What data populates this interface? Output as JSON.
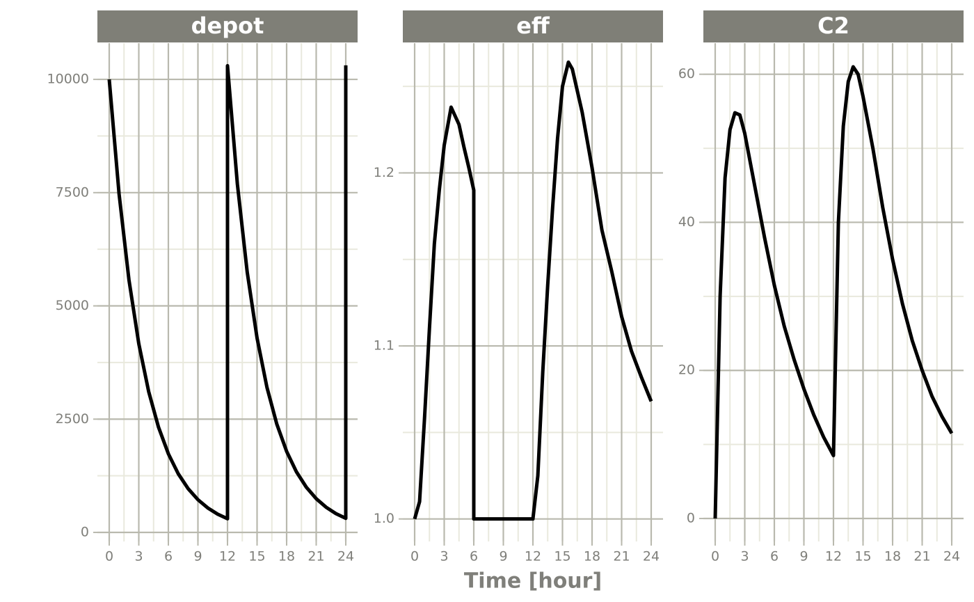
{
  "chart_data": [
    {
      "type": "line",
      "title": "depot",
      "color": "#000000",
      "x": [
        0,
        1,
        2,
        3,
        4,
        5,
        6,
        7,
        8,
        9,
        10,
        11,
        12,
        12,
        13,
        14,
        15,
        16,
        17,
        18,
        19,
        20,
        21,
        22,
        23,
        24,
        24
      ],
      "values": [
        10000,
        7468,
        5577,
        4165,
        3110,
        2323,
        1735,
        1295,
        967,
        722,
        540,
        403,
        301,
        10301,
        7693,
        5745,
        4290,
        3204,
        2393,
        1787,
        1334,
        996,
        744,
        556,
        415,
        310,
        10310
      ],
      "xlim": [
        -1.2,
        25.2
      ],
      "xticks": [
        0,
        3,
        6,
        9,
        12,
        15,
        18,
        21,
        24
      ],
      "ylim": [
        -200,
        10800
      ],
      "yticks": [
        0,
        2500,
        5000,
        7500,
        10000
      ],
      "grid": true
    },
    {
      "type": "line",
      "title": "eff",
      "color": "#000000",
      "xlabel": "Time [hour]",
      "x": [
        0,
        0.5,
        1,
        1.5,
        2,
        2.5,
        3,
        3.7,
        4.5,
        5,
        5.5,
        6,
        6,
        7,
        8,
        9,
        10,
        11,
        12,
        12.5,
        13,
        13.5,
        14,
        14.5,
        15,
        15.6,
        16,
        17,
        18,
        19,
        20,
        21,
        22,
        23,
        24
      ],
      "values": [
        1.0,
        1.01,
        1.058,
        1.11,
        1.159,
        1.19,
        1.216,
        1.238,
        1.228,
        1.215,
        1.203,
        1.19,
        1.0,
        1.0,
        1.0,
        1.0,
        1.0,
        1.0,
        1.0,
        1.025,
        1.085,
        1.135,
        1.18,
        1.22,
        1.25,
        1.264,
        1.26,
        1.235,
        1.203,
        1.167,
        1.143,
        1.117,
        1.097,
        1.082,
        1.068
      ],
      "xlim": [
        -1.2,
        25.2
      ],
      "xticks": [
        0,
        3,
        6,
        9,
        12,
        15,
        18,
        21,
        24
      ],
      "ylim": [
        0.987,
        1.275
      ],
      "yticks": [
        {
          "value": 1,
          "label": "1.0"
        },
        1.1,
        1.2
      ],
      "grid": true
    },
    {
      "type": "line",
      "title": "C2",
      "color": "#000000",
      "x": [
        0,
        0.5,
        1,
        1.5,
        2,
        2.5,
        3,
        4,
        5,
        6,
        7,
        8,
        9,
        10,
        11,
        12,
        12.5,
        13,
        13.5,
        14,
        14.5,
        15,
        16,
        17,
        18,
        19,
        20,
        21,
        22,
        23,
        24
      ],
      "values": [
        0,
        30,
        46,
        52.5,
        54.8,
        54.5,
        52,
        45,
        38,
        31.5,
        26,
        21.5,
        17.5,
        14,
        11,
        8.5,
        40,
        53,
        59,
        61,
        60,
        57,
        50,
        42,
        35,
        29,
        24,
        20,
        16.5,
        13.8,
        11.5
      ],
      "xlim": [
        -1.2,
        25.2
      ],
      "xticks": [
        0,
        3,
        6,
        9,
        12,
        15,
        18,
        21,
        24
      ],
      "ylim": [
        -3.1,
        64.2
      ],
      "yticks": [
        0,
        20,
        40,
        60
      ],
      "grid": true
    }
  ]
}
